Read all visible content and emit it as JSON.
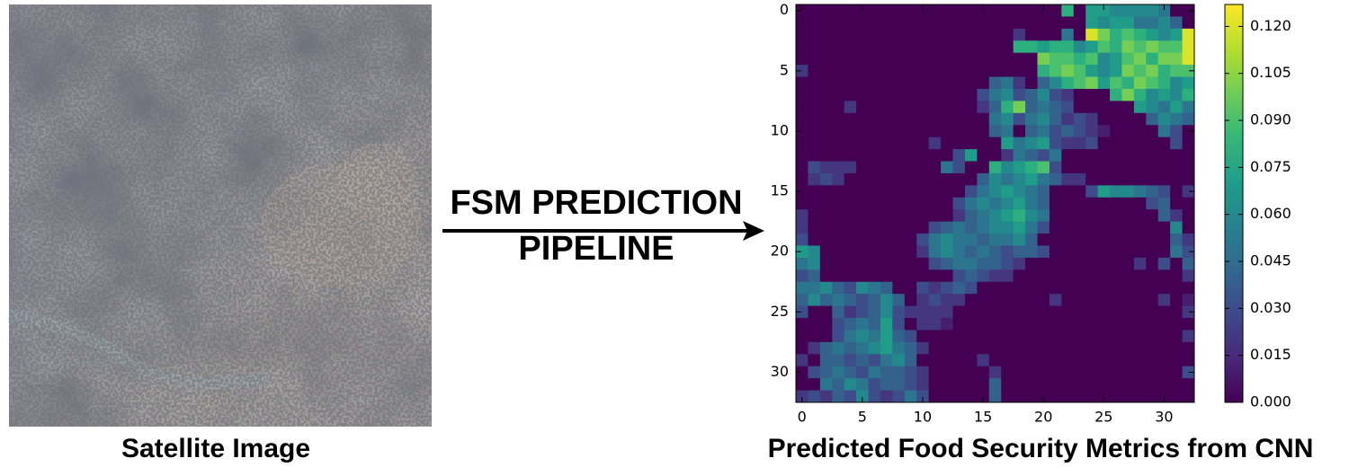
{
  "left_caption": "Satellite Image",
  "arrow_label": [
    "FSM PREDICTION",
    "PIPELINE"
  ],
  "chart_data": {
    "type": "heatmap",
    "caption": "Predicted Food Security Metrics from CNN",
    "colormap": "viridis",
    "xlim": [
      -0.5,
      32.5
    ],
    "ylim": [
      -0.5,
      32.5
    ],
    "y_inverted": true,
    "xticks": [
      0,
      5,
      10,
      15,
      20,
      25,
      30
    ],
    "yticks": [
      0,
      5,
      10,
      15,
      20,
      25,
      30
    ],
    "clim": [
      0,
      0.127
    ],
    "cticks": [
      {
        "value": 0,
        "label": "0.000"
      },
      {
        "value": 0.015,
        "label": "0.015"
      },
      {
        "value": 0.03,
        "label": "0.030"
      },
      {
        "value": 0.045,
        "label": "0.045"
      },
      {
        "value": 0.06,
        "label": "0.060"
      },
      {
        "value": 0.075,
        "label": "0.075"
      },
      {
        "value": 0.09,
        "label": "0.090"
      },
      {
        "value": 0.105,
        "label": "0.105"
      },
      {
        "value": 0.12,
        "label": "0.120"
      }
    ],
    "z": [
      [
        0,
        0,
        0,
        0,
        0,
        0,
        0,
        0,
        0,
        0,
        0,
        0,
        0,
        0,
        0,
        0,
        0,
        0,
        0,
        0,
        0,
        0,
        0.08,
        0,
        0.07,
        0.07,
        0.06,
        0.06,
        0.06,
        0.06,
        0.05,
        0,
        0
      ],
      [
        0,
        0,
        0,
        0,
        0,
        0,
        0,
        0,
        0,
        0,
        0,
        0,
        0,
        0,
        0,
        0,
        0,
        0,
        0,
        0,
        0,
        0,
        0,
        0,
        0.07,
        0.06,
        0.07,
        0.07,
        0.05,
        0.05,
        0.06,
        0.04,
        0
      ],
      [
        0,
        0,
        0,
        0,
        0,
        0,
        0,
        0,
        0,
        0,
        0,
        0,
        0,
        0,
        0,
        0,
        0,
        0,
        0.02,
        0,
        0,
        0,
        0.05,
        0,
        0.12,
        0.1,
        0.08,
        0.09,
        0.08,
        0.07,
        0.06,
        0.07,
        0.12
      ],
      [
        0,
        0,
        0,
        0,
        0,
        0,
        0,
        0,
        0,
        0,
        0,
        0,
        0,
        0,
        0,
        0,
        0,
        0,
        0.08,
        0.08,
        0.07,
        0.08,
        0.08,
        0.06,
        0.07,
        0.09,
        0.08,
        0.1,
        0.09,
        0.1,
        0.09,
        0.09,
        0.12
      ],
      [
        0,
        0,
        0,
        0,
        0,
        0,
        0,
        0,
        0,
        0,
        0,
        0,
        0,
        0,
        0,
        0,
        0,
        0,
        0,
        0,
        0.1,
        0.09,
        0.09,
        0.08,
        0.09,
        0.06,
        0.07,
        0.09,
        0.1,
        0.08,
        0.1,
        0.1,
        0.12
      ],
      [
        0.02,
        0,
        0,
        0,
        0,
        0,
        0,
        0,
        0,
        0,
        0,
        0,
        0,
        0,
        0,
        0,
        0,
        0,
        0,
        0,
        0.08,
        0.09,
        0.1,
        0.09,
        0.07,
        0.06,
        0.07,
        0.1,
        0.09,
        0.1,
        0.08,
        0.09,
        0.09
      ],
      [
        0,
        0,
        0,
        0,
        0,
        0,
        0,
        0,
        0,
        0,
        0,
        0,
        0,
        0,
        0,
        0,
        0.04,
        0.05,
        0.02,
        0,
        0.04,
        0.06,
        0.08,
        0.09,
        0.1,
        0.07,
        0.09,
        0.08,
        0.1,
        0.09,
        0.08,
        0.06,
        0.07
      ],
      [
        0,
        0,
        0,
        0,
        0,
        0,
        0,
        0,
        0,
        0,
        0,
        0,
        0,
        0,
        0,
        0.03,
        0.05,
        0.06,
        0.03,
        0.04,
        0.06,
        0.03,
        0.02,
        0,
        0,
        0,
        0.08,
        0.1,
        0.08,
        0.06,
        0.07,
        0.06,
        0.08
      ],
      [
        0,
        0,
        0,
        0,
        0.02,
        0,
        0,
        0,
        0,
        0,
        0,
        0,
        0,
        0,
        0,
        0.02,
        0.04,
        0.08,
        0.1,
        0.04,
        0.05,
        0.04,
        0.03,
        0,
        0,
        0,
        0,
        0,
        0.07,
        0.06,
        0.05,
        0.07,
        0.05
      ],
      [
        0,
        0,
        0,
        0,
        0,
        0,
        0,
        0,
        0,
        0,
        0,
        0,
        0,
        0,
        0,
        0,
        0.05,
        0.06,
        0.03,
        0.05,
        0.06,
        0.04,
        0.02,
        0.03,
        0.02,
        0,
        0,
        0,
        0,
        0.04,
        0.06,
        0.05,
        0.04
      ],
      [
        0,
        0,
        0,
        0,
        0,
        0,
        0,
        0,
        0,
        0,
        0,
        0,
        0,
        0,
        0,
        0,
        0.04,
        0.05,
        0,
        0.04,
        0.05,
        0.03,
        0.04,
        0.03,
        0.02,
        0.01,
        0,
        0,
        0,
        0,
        0.05,
        0.03,
        0
      ],
      [
        0,
        0,
        0,
        0,
        0,
        0,
        0,
        0,
        0,
        0,
        0,
        0.02,
        0,
        0,
        0,
        0,
        0,
        0.07,
        0.05,
        0.06,
        0.07,
        0.03,
        0.02,
        0.02,
        0.03,
        0,
        0,
        0,
        0,
        0,
        0,
        0.03,
        0
      ],
      [
        0,
        0,
        0,
        0,
        0,
        0,
        0,
        0,
        0,
        0,
        0,
        0,
        0,
        0.03,
        0.07,
        0,
        0,
        0.02,
        0.05,
        0.04,
        0.03,
        0.05,
        0,
        0,
        0,
        0,
        0,
        0,
        0,
        0,
        0,
        0,
        0
      ],
      [
        0,
        0.03,
        0.02,
        0.02,
        0.02,
        0,
        0,
        0,
        0,
        0,
        0,
        0,
        0.05,
        0.03,
        0,
        0,
        0.08,
        0.06,
        0.07,
        0.08,
        0.09,
        0.03,
        0,
        0,
        0,
        0,
        0,
        0,
        0,
        0,
        0,
        0,
        0
      ],
      [
        0,
        0.02,
        0.03,
        0.02,
        0,
        0,
        0,
        0,
        0,
        0,
        0,
        0,
        0,
        0,
        0,
        0.04,
        0.06,
        0.05,
        0.06,
        0.07,
        0.05,
        0.04,
        0.02,
        0.02,
        0,
        0,
        0,
        0,
        0,
        0,
        0,
        0,
        0
      ],
      [
        0,
        0,
        0,
        0,
        0,
        0,
        0,
        0,
        0,
        0,
        0,
        0,
        0,
        0,
        0.03,
        0.05,
        0.06,
        0.07,
        0.06,
        0.05,
        0.04,
        0,
        0,
        0,
        0.03,
        0.07,
        0.06,
        0.06,
        0.05,
        0.04,
        0.03,
        0,
        0.02
      ],
      [
        0,
        0,
        0,
        0,
        0,
        0,
        0,
        0,
        0,
        0,
        0,
        0,
        0,
        0.03,
        0.05,
        0.06,
        0.05,
        0.06,
        0.07,
        0.05,
        0.04,
        0,
        0,
        0,
        0,
        0,
        0,
        0,
        0,
        0.03,
        0.04,
        0,
        0
      ],
      [
        0.02,
        0,
        0,
        0,
        0,
        0,
        0,
        0,
        0,
        0,
        0,
        0,
        0,
        0.02,
        0.04,
        0.05,
        0.06,
        0.07,
        0.08,
        0.06,
        0.05,
        0,
        0,
        0,
        0,
        0,
        0,
        0,
        0,
        0,
        0.04,
        0.02,
        0
      ],
      [
        0.02,
        0,
        0,
        0,
        0,
        0,
        0,
        0,
        0,
        0,
        0,
        0.03,
        0.04,
        0.05,
        0.04,
        0.05,
        0.06,
        0.06,
        0.07,
        0.05,
        0.03,
        0,
        0,
        0,
        0,
        0,
        0,
        0,
        0,
        0,
        0,
        0.06,
        0
      ],
      [
        0.03,
        0,
        0,
        0,
        0,
        0,
        0,
        0,
        0,
        0,
        0.03,
        0.05,
        0.06,
        0.05,
        0.05,
        0.04,
        0.05,
        0.05,
        0.06,
        0.04,
        0,
        0,
        0,
        0,
        0,
        0,
        0,
        0,
        0,
        0,
        0,
        0.04,
        0.02
      ],
      [
        0.07,
        0.06,
        0,
        0,
        0,
        0,
        0,
        0,
        0,
        0,
        0.02,
        0.05,
        0.06,
        0.05,
        0.04,
        0.05,
        0.04,
        0.03,
        0.04,
        0.04,
        0.03,
        0,
        0,
        0,
        0,
        0,
        0,
        0,
        0,
        0,
        0,
        0.05,
        0.03
      ],
      [
        0.05,
        0.06,
        0,
        0,
        0,
        0,
        0,
        0,
        0,
        0,
        0,
        0.03,
        0.04,
        0.05,
        0.05,
        0.04,
        0.04,
        0.03,
        0.02,
        0,
        0,
        0,
        0,
        0,
        0,
        0,
        0,
        0,
        0.02,
        0,
        0.03,
        0,
        0.04
      ],
      [
        0.03,
        0.04,
        0,
        0,
        0,
        0,
        0,
        0,
        0,
        0,
        0,
        0,
        0,
        0.03,
        0.04,
        0.03,
        0.02,
        0.02,
        0,
        0,
        0,
        0,
        0,
        0,
        0,
        0,
        0,
        0,
        0,
        0,
        0,
        0,
        0.02
      ],
      [
        0.05,
        0.05,
        0.06,
        0.04,
        0.03,
        0.06,
        0.05,
        0.04,
        0,
        0,
        0.03,
        0.02,
        0.03,
        0.04,
        0.03,
        0,
        0,
        0,
        0,
        0,
        0,
        0,
        0,
        0,
        0,
        0,
        0,
        0,
        0,
        0,
        0,
        0,
        0
      ],
      [
        0.04,
        0.06,
        0.04,
        0.05,
        0.04,
        0.03,
        0.04,
        0.06,
        0.04,
        0,
        0.02,
        0.03,
        0.02,
        0.02,
        0,
        0,
        0,
        0,
        0,
        0,
        0,
        0.02,
        0,
        0,
        0,
        0,
        0,
        0,
        0,
        0,
        0.02,
        0,
        0.01
      ],
      [
        0.03,
        0,
        0,
        0.04,
        0.02,
        0.03,
        0.04,
        0.06,
        0.03,
        0.02,
        0.02,
        0.02,
        0.02,
        0,
        0,
        0,
        0,
        0,
        0,
        0,
        0,
        0,
        0,
        0,
        0,
        0,
        0,
        0,
        0,
        0,
        0,
        0,
        0.02
      ],
      [
        0,
        0,
        0,
        0.03,
        0.04,
        0.05,
        0.04,
        0.07,
        0.03,
        0,
        0.02,
        0.02,
        0.01,
        0,
        0,
        0,
        0,
        0,
        0,
        0,
        0,
        0,
        0,
        0,
        0,
        0,
        0,
        0,
        0,
        0,
        0,
        0,
        0
      ],
      [
        0,
        0,
        0,
        0.03,
        0.05,
        0.06,
        0.05,
        0.07,
        0.04,
        0.03,
        0,
        0,
        0,
        0,
        0,
        0,
        0,
        0,
        0,
        0,
        0,
        0,
        0,
        0,
        0,
        0,
        0,
        0,
        0,
        0,
        0,
        0,
        0.02
      ],
      [
        0,
        0.02,
        0.04,
        0.05,
        0.04,
        0.05,
        0.06,
        0.07,
        0.05,
        0.04,
        0.02,
        0,
        0,
        0,
        0,
        0,
        0,
        0,
        0,
        0,
        0,
        0,
        0,
        0,
        0,
        0,
        0,
        0,
        0,
        0,
        0,
        0,
        0
      ],
      [
        0.02,
        0,
        0.04,
        0.04,
        0.03,
        0.04,
        0.03,
        0.05,
        0.06,
        0.04,
        0,
        0,
        0,
        0,
        0,
        0.02,
        0,
        0,
        0,
        0,
        0,
        0,
        0,
        0,
        0,
        0,
        0,
        0,
        0,
        0,
        0,
        0,
        0
      ],
      [
        0,
        0.03,
        0.04,
        0.05,
        0.04,
        0.03,
        0.05,
        0.04,
        0.04,
        0.03,
        0.02,
        0,
        0,
        0,
        0,
        0,
        0.02,
        0,
        0,
        0,
        0,
        0,
        0,
        0,
        0,
        0,
        0,
        0,
        0,
        0,
        0,
        0,
        0.03
      ],
      [
        0,
        0,
        0.05,
        0.04,
        0.06,
        0.05,
        0.03,
        0.04,
        0.04,
        0.03,
        0.02,
        0,
        0,
        0,
        0,
        0,
        0.04,
        0,
        0,
        0,
        0,
        0,
        0,
        0,
        0,
        0,
        0,
        0,
        0,
        0,
        0,
        0,
        0
      ],
      [
        0.02,
        0.03,
        0.02,
        0.04,
        0.03,
        0.06,
        0.03,
        0.02,
        0.03,
        0.05,
        0.03,
        0,
        0,
        0,
        0,
        0,
        0.04,
        0,
        0,
        0,
        0,
        0,
        0,
        0,
        0,
        0,
        0,
        0,
        0,
        0,
        0,
        0,
        0
      ]
    ]
  }
}
